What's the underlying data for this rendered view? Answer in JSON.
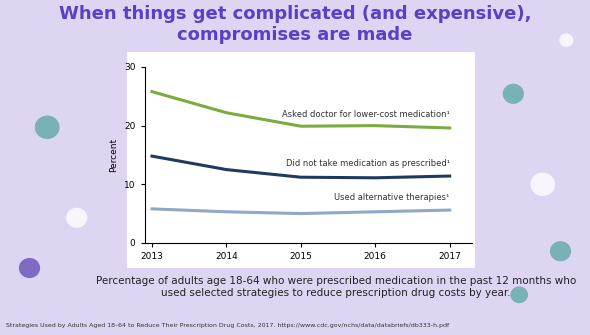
{
  "chart_data": {
    "type": "line",
    "title": "When things get complicated (and expensive), compromises are made",
    "caption": "Percentage of adults age 18-64 who were prescribed medication in the past 12 months who used selected strategies to reduce prescription drug costs by year.",
    "source": "Strategies Used by Adults Aged 18–64 to Reduce Their Prescription Drug Costs, 2017. https://www.cdc.gov/nchs/data/databriefs/db333-h.pdf",
    "y_label": "Percent",
    "x": [
      2013,
      2014,
      2015,
      2016,
      2017
    ],
    "series": [
      {
        "name": "Asked doctor for lower-cost medication¹",
        "color": "#7aad3e",
        "values": [
          25.8,
          22.2,
          19.9,
          20.0,
          19.6
        ]
      },
      {
        "name": "Did not take medication as prescribed¹",
        "color": "#1f3a5f",
        "values": [
          14.8,
          12.5,
          11.2,
          11.1,
          11.4
        ]
      },
      {
        "name": "Used alternative therapies¹",
        "color": "#8fa8c4",
        "values": [
          5.8,
          5.3,
          5.0,
          5.3,
          5.6
        ]
      }
    ],
    "xlim": [
      2012.9,
      2017.3
    ],
    "ylim": [
      0,
      30
    ],
    "xticks": [
      2013,
      2014,
      2015,
      2016,
      2017
    ],
    "yticks": [
      0,
      10,
      20,
      30
    ],
    "grid": false
  }
}
